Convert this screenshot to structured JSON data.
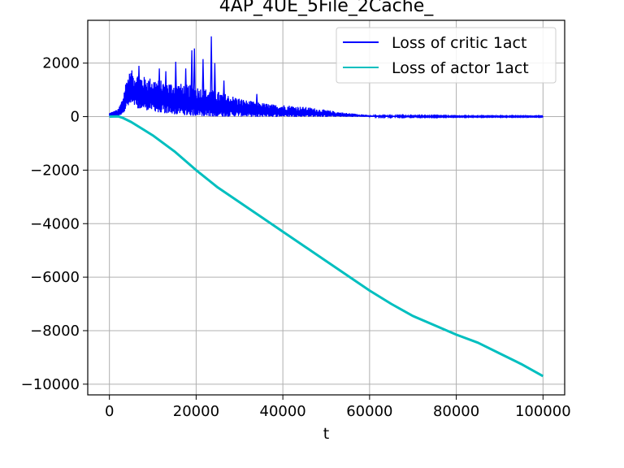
{
  "chart_data": {
    "type": "line",
    "title": "4AP_4UE_5File_2Cache_",
    "xlabel": "t",
    "ylabel": "",
    "xlim": [
      -5000,
      105000
    ],
    "ylim": [
      -10400,
      3600
    ],
    "xticks": [
      0,
      20000,
      40000,
      60000,
      80000,
      100000
    ],
    "yticks": [
      2000,
      0,
      -2000,
      -4000,
      -6000,
      -8000,
      -10000
    ],
    "xtick_labels": [
      "0",
      "20000",
      "40000",
      "60000",
      "80000",
      "100000"
    ],
    "ytick_labels": [
      "2000",
      "0",
      "−2000",
      "−4000",
      "−6000",
      "−8000",
      "−10000"
    ],
    "grid": true,
    "legend_position": "top-right",
    "series": [
      {
        "name": "Loss of critic 1act",
        "color": "#0000ff",
        "style": "noisy-band",
        "x": [
          0,
          2000,
          3000,
          4000,
          5000,
          6000,
          8000,
          10000,
          12000,
          14000,
          16000,
          18000,
          20000,
          22000,
          24000,
          26000,
          28000,
          30000,
          32000,
          34000,
          36000,
          38000,
          40000,
          42000,
          44000,
          46000,
          48000,
          50000,
          52000,
          54000,
          56000,
          58000,
          60000,
          70000,
          80000,
          90000,
          100000
        ],
        "upper": [
          150,
          280,
          700,
          1500,
          1750,
          1650,
          1500,
          1450,
          1350,
          1300,
          1250,
          1200,
          1150,
          1050,
          1000,
          900,
          800,
          700,
          600,
          550,
          500,
          450,
          450,
          420,
          380,
          350,
          300,
          250,
          200,
          150,
          120,
          100,
          50,
          30,
          20,
          20,
          20
        ],
        "lower": [
          0,
          0,
          100,
          300,
          400,
          350,
          250,
          200,
          150,
          100,
          80,
          50,
          30,
          20,
          10,
          0,
          0,
          0,
          -10,
          -10,
          -10,
          -10,
          -10,
          -10,
          -10,
          -10,
          -10,
          -10,
          -10,
          -10,
          -10,
          -10,
          -10,
          -10,
          -10,
          -10,
          -10
        ],
        "spikes": [
          {
            "x": 6800,
            "y": 1900
          },
          {
            "x": 11500,
            "y": 1800
          },
          {
            "x": 13000,
            "y": 1700
          },
          {
            "x": 15300,
            "y": 2050
          },
          {
            "x": 17600,
            "y": 1800
          },
          {
            "x": 19000,
            "y": 2480
          },
          {
            "x": 19600,
            "y": 2550
          },
          {
            "x": 21600,
            "y": 2150
          },
          {
            "x": 23500,
            "y": 3000
          },
          {
            "x": 24300,
            "y": 2000
          },
          {
            "x": 26400,
            "y": 1350
          },
          {
            "x": 34000,
            "y": 850
          }
        ]
      },
      {
        "name": "Loss of actor 1act",
        "color": "#00bfbf",
        "style": "line",
        "x": [
          0,
          2000,
          3000,
          5000,
          8000,
          10000,
          15000,
          20000,
          25000,
          30000,
          35000,
          40000,
          45000,
          50000,
          55000,
          60000,
          65000,
          70000,
          75000,
          80000,
          85000,
          90000,
          95000,
          100000
        ],
        "y": [
          0,
          10,
          -40,
          -200,
          -500,
          -700,
          -1300,
          -2000,
          -2650,
          -3200,
          -3750,
          -4300,
          -4850,
          -5400,
          -5950,
          -6500,
          -7000,
          -7450,
          -7800,
          -8150,
          -8450,
          -8850,
          -9250,
          -9700
        ]
      }
    ]
  }
}
